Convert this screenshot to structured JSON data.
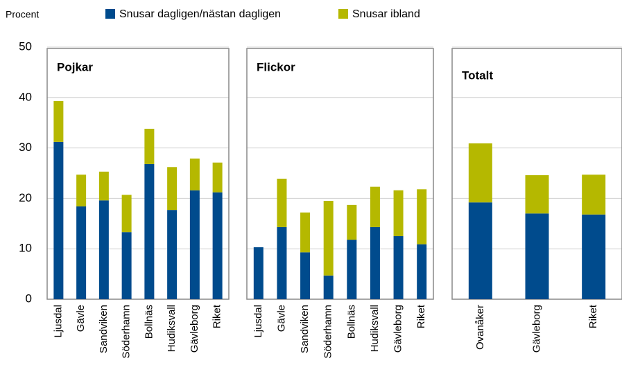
{
  "chart_data": {
    "type": "bar",
    "stacked": true,
    "ylabel": "Procent",
    "ylim": [
      0,
      50
    ],
    "yticks": [
      0,
      10,
      20,
      30,
      40,
      50
    ],
    "grid": true,
    "series": [
      {
        "name": "Snusar dagligen/nästan dagligen",
        "color": "#004b8d"
      },
      {
        "name": "Snusar ibland",
        "color": "#b5b800"
      }
    ],
    "panels": [
      {
        "title": "Pojkar",
        "categories": [
          "Ljusdal",
          "Gävle",
          "Sandviken",
          "Söderhamn",
          "Bollnäs",
          "Hudiksvall",
          "Gävleborg",
          "Riket"
        ],
        "values": [
          [
            31.2,
            18.4,
            19.6,
            13.3,
            26.8,
            17.7,
            21.6,
            21.2
          ],
          [
            8.1,
            6.3,
            5.7,
            7.4,
            7.0,
            8.5,
            6.3,
            5.9
          ]
        ]
      },
      {
        "title": "Flickor",
        "categories": [
          "Ljusdal",
          "Gävle",
          "Sandviken",
          "Söderhamn",
          "Bollnäs",
          "Hudiksvall",
          "Gävleborg",
          "Riket"
        ],
        "values": [
          [
            10.3,
            14.3,
            9.3,
            4.7,
            11.8,
            14.3,
            12.5,
            10.9
          ],
          [
            0,
            9.6,
            7.9,
            14.8,
            6.9,
            8.0,
            9.1,
            10.9
          ]
        ]
      },
      {
        "title": "Totalt",
        "categories": [
          "Ovanåker",
          "Gävleborg",
          "Riket"
        ],
        "values": [
          [
            19.2,
            17.0,
            16.8
          ],
          [
            11.7,
            7.6,
            7.9
          ]
        ]
      }
    ]
  }
}
